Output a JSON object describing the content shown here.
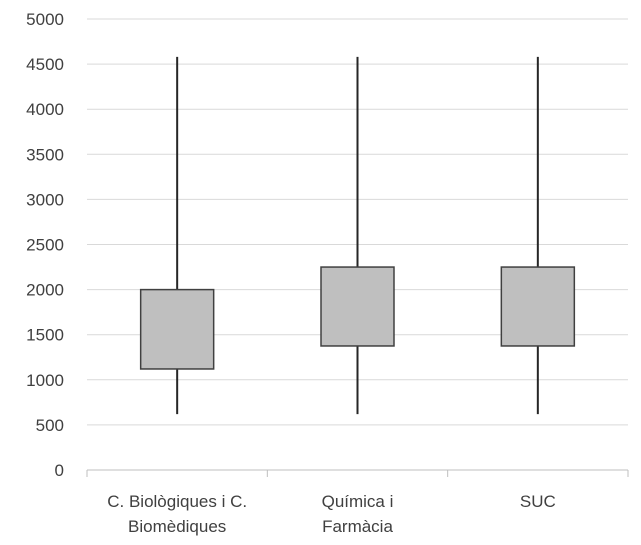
{
  "chart_data": {
    "type": "box",
    "categories": [
      "C. Biològiques i C. Biomèdiques",
      "Química i Farmàcia",
      "SUC"
    ],
    "category_label_lines": [
      [
        "C. Biològiques i C.",
        "Biomèdiques"
      ],
      [
        "Química i",
        "Farmàcia"
      ],
      [
        "SUC"
      ]
    ],
    "boxes": [
      {
        "category": "C. Biològiques i C. Biomèdiques",
        "min": 620,
        "q1": 1120,
        "q3": 2000,
        "max": 4580
      },
      {
        "category": "Química i Farmàcia",
        "min": 620,
        "q1": 1375,
        "q3": 2250,
        "max": 4580
      },
      {
        "category": "SUC",
        "min": 620,
        "q1": 1375,
        "q3": 2250,
        "max": 4580
      }
    ],
    "ylim": [
      0,
      5000
    ],
    "y_ticks": [
      0,
      500,
      1000,
      1500,
      2000,
      2500,
      3000,
      3500,
      4000,
      4500,
      5000
    ],
    "title": "",
    "xlabel": "",
    "ylabel": "",
    "grid": true,
    "colors": {
      "box_fill": "#bfbfbf",
      "box_stroke": "#404040",
      "whisker": "#262626",
      "grid": "#d9d9d9",
      "axis": "#bfbfbf",
      "text": "#404040"
    }
  }
}
